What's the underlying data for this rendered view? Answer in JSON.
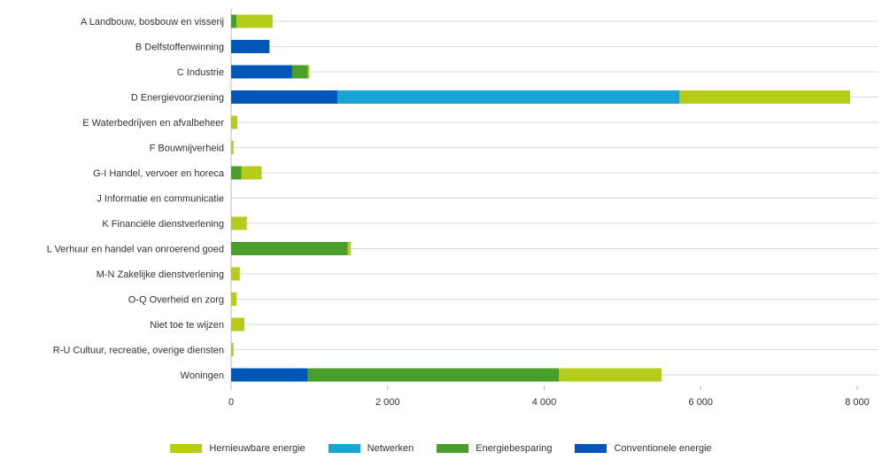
{
  "chart_data": {
    "type": "bar",
    "orientation": "horizontal",
    "stacked": true,
    "categories": [
      "A Landbouw, bosbouw en visserij",
      "B Delfstoffenwinning",
      "C Industrie",
      "D Energievoorziening",
      "E Waterbedrijven en afvalbeheer",
      "F Bouwnijverheid",
      "G-I Handel, vervoer en horeca",
      "J Informatie en communicatie",
      "K Financiële dienstverlening",
      "L Verhuur en handel van onroerend goed",
      "M-N Zakelijke dienstverlening",
      "O-Q Overheid en zorg",
      "Niet toe te wijzen",
      "R-U Cultuur, recreatie, overige diensten",
      "Woningen"
    ],
    "series": [
      {
        "name": "Conventionele energie",
        "color": "#0057b8",
        "values": [
          0,
          490,
          780,
          1360,
          0,
          0,
          0,
          0,
          0,
          0,
          0,
          0,
          0,
          0,
          980
        ]
      },
      {
        "name": "Netwerken",
        "color": "#1ba3d6",
        "values": [
          0,
          0,
          0,
          4370,
          0,
          0,
          0,
          0,
          0,
          0,
          0,
          0,
          0,
          0,
          0
        ]
      },
      {
        "name": "Energiebesparing",
        "color": "#4a9e2b",
        "values": [
          70,
          0,
          200,
          0,
          0,
          0,
          130,
          0,
          0,
          1490,
          0,
          0,
          0,
          0,
          3210
        ]
      },
      {
        "name": "Hernieuwbare energie",
        "color": "#b5cd1a",
        "values": [
          460,
          0,
          20,
          2180,
          80,
          30,
          260,
          0,
          200,
          40,
          110,
          70,
          170,
          30,
          1310
        ]
      }
    ],
    "x_ticks": [
      "0",
      "2 000",
      "4 000",
      "6 000",
      "8 000"
    ],
    "xlim": [
      0,
      8000
    ],
    "legend": {
      "position": "bottom",
      "entries": [
        {
          "label": "Hernieuwbare energie",
          "color": "#b5cd1a"
        },
        {
          "label": "Netwerken",
          "color": "#1ba3d6"
        },
        {
          "label": "Energiebesparing",
          "color": "#4a9e2b"
        },
        {
          "label": "Conventionele energie",
          "color": "#0057b8"
        }
      ]
    },
    "grid": "vertical"
  }
}
